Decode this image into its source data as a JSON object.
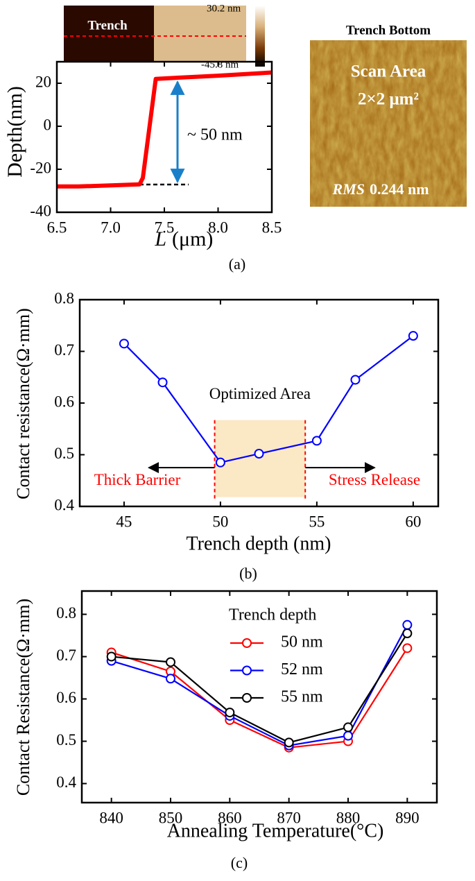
{
  "chart_data": [
    {
      "type": "line",
      "x": [
        6.5,
        6.7,
        7.0,
        7.27,
        7.3,
        7.42,
        7.6,
        8.0,
        8.5
      ],
      "series": [
        {
          "color": "#ff0000",
          "values": [
            -28,
            -28,
            -27.5,
            -27,
            -24,
            22,
            22.5,
            23.5,
            25
          ]
        }
      ],
      "xlim": [
        6.5,
        8.5
      ],
      "xticks": [
        6.5,
        {
          "value": 7,
          "label": "7.0"
        },
        7.5,
        {
          "value": 8,
          "label": "8.0"
        },
        8.5
      ],
      "ylim": [
        -40,
        30
      ],
      "yticks": [
        -40,
        -20,
        0,
        20
      ],
      "ylabel": "Depth(nm)",
      "xlabel": {
        "symbol": "L",
        "unit": "(μm)"
      },
      "annotation": "~ 50 nm",
      "inset": {
        "label": "Trench",
        "max": "30.2 nm",
        "min": "-45.8 nm"
      },
      "caption": "(a)"
    },
    {
      "type": "line",
      "markers": true,
      "x": [
        45,
        47,
        50,
        52,
        55,
        57,
        60
      ],
      "series": [
        {
          "color": "#0000ff",
          "values": [
            0.715,
            0.64,
            0.485,
            0.502,
            0.527,
            0.645,
            0.73
          ]
        }
      ],
      "xlim": [
        42.7,
        61.3
      ],
      "xticks": [
        45,
        50,
        55,
        60
      ],
      "ylim": [
        0.4,
        0.8
      ],
      "yticks": [
        0.4,
        0.5,
        0.6,
        0.7,
        0.8
      ],
      "highlight": {
        "xlim": [
          49.7,
          54.4
        ],
        "ylim": [
          0.418,
          0.567
        ]
      },
      "ylabel": "Contact resistance(Ω·mm)",
      "xlabel": "Trench depth (nm)",
      "annotations": [
        "Optimized Area",
        "Thick Barrier",
        "Stress Release"
      ],
      "caption": "(b)"
    },
    {
      "type": "line",
      "markers": true,
      "x": [
        840,
        850,
        860,
        870,
        880,
        890
      ],
      "series": [
        {
          "name": "50 nm",
          "color": "#ff0000",
          "values": [
            0.71,
            0.665,
            0.55,
            0.485,
            0.5,
            0.72
          ]
        },
        {
          "name": "52 nm",
          "color": "#0000ff",
          "values": [
            0.69,
            0.648,
            0.56,
            0.49,
            0.513,
            0.775
          ]
        },
        {
          "name": "55 nm",
          "color": "#000000",
          "values": [
            0.7,
            0.687,
            0.568,
            0.497,
            0.533,
            0.755
          ]
        }
      ],
      "xlim": [
        835,
        895
      ],
      "xticks": [
        840,
        850,
        860,
        870,
        880,
        890
      ],
      "ylim": [
        0.355,
        0.855
      ],
      "yticks": [
        0.4,
        0.5,
        0.6,
        0.7,
        0.8
      ],
      "legend_title": "Trench depth",
      "ylabel": "Contact Resistance(Ω·mm)",
      "xlabel": "Annealing Temperature(°C)",
      "caption": "(c)"
    }
  ],
  "afm_image": {
    "title": "Trench Bottom",
    "line1": "Scan Area",
    "line2": "2×2 μm²",
    "rms_label": "RMS",
    "rms_value": "0.244 nm"
  }
}
